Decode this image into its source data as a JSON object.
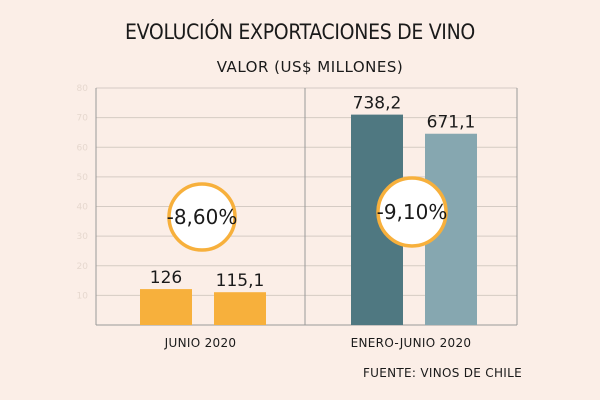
{
  "chart_data": {
    "type": "bar",
    "title": "EVOLUCIÓN EXPORTACIONES DE VINO",
    "subtitle": "VALOR (US$ MILLONES)",
    "source": "FUENTE: VINOS DE CHILE",
    "y_ticks": [
      "10",
      "20",
      "30",
      "40",
      "50",
      "60",
      "70",
      "80"
    ],
    "panels": [
      {
        "category": "JUNIO 2020",
        "change": "-8,60%",
        "values": [
          126,
          115.1
        ],
        "value_labels": [
          "126",
          "115,1"
        ],
        "colors": [
          "#f7b03c",
          "#f7b03c"
        ],
        "ylim": [
          0,
          1000
        ]
      },
      {
        "category": "ENERO-JUNIO 2020",
        "change": "-9,10%",
        "values": [
          738.2,
          671.1
        ],
        "value_labels": [
          "738,2",
          "671,1"
        ],
        "colors": [
          "#4f7881",
          "#86a7b0"
        ],
        "ylim": [
          0,
          1000
        ]
      }
    ],
    "grid": true,
    "circle_color": "#f7b03c"
  }
}
